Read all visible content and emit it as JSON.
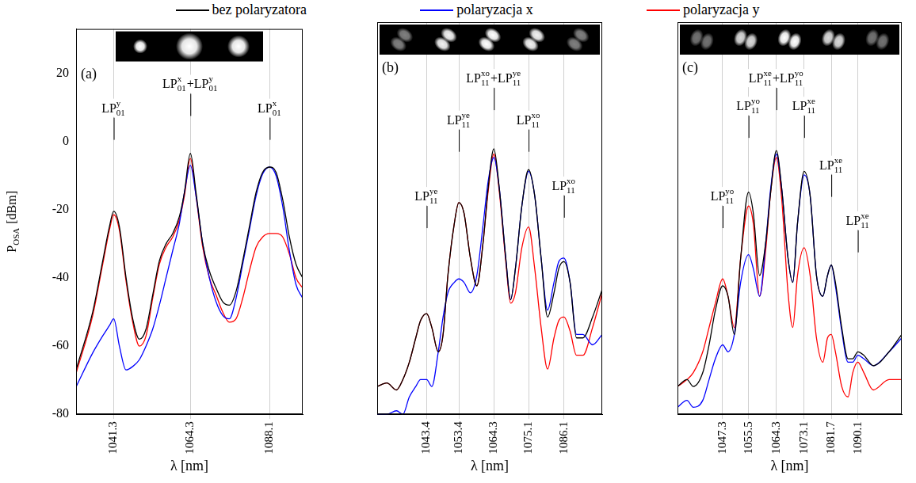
{
  "chart_data": [
    {
      "type": "line",
      "panel": "(a)",
      "legend": "top",
      "grid": "x",
      "x_label": "λ [nm]",
      "y_label": [
        {
          "base": "P",
          "sub": "OSA"
        },
        " [dBm]"
      ],
      "xlim": [
        1030,
        1098
      ],
      "xticks": [
        1041.3,
        1064.3,
        1088.1
      ],
      "ylim": [
        -80,
        33
      ],
      "yticks": [
        -80,
        -60,
        -40,
        -20,
        0,
        20
      ],
      "x": [
        1030,
        1035,
        1038,
        1040,
        1041.3,
        1043,
        1045,
        1047,
        1049,
        1051,
        1053,
        1055,
        1057,
        1059,
        1061,
        1062.5,
        1064.3,
        1066,
        1068,
        1070,
        1072,
        1074,
        1076,
        1078,
        1080,
        1082,
        1084,
        1086,
        1088.1,
        1090,
        1092,
        1094,
        1096,
        1098
      ],
      "series": [
        {
          "name": "bez polaryzatora",
          "color": "#000000",
          "values": [
            -67,
            -50,
            -35,
            -25,
            -20.5,
            -25,
            -40,
            -52,
            -58,
            -55,
            -45,
            -35,
            -30,
            -27,
            -22,
            -15,
            -3.5,
            -15,
            -30,
            -38,
            -43,
            -47,
            -48,
            -44,
            -35,
            -25,
            -15,
            -9,
            -7.5,
            -9,
            -17,
            -28,
            -36,
            -40
          ]
        },
        {
          "name": "polaryzacja x",
          "color": "#0000ff",
          "values": [
            -72,
            -62,
            -57,
            -54,
            -52,
            -60,
            -67,
            -66,
            -64,
            -60,
            -55,
            -48,
            -40,
            -32,
            -24,
            -15,
            -7,
            -16,
            -30,
            -40,
            -47,
            -51,
            -52,
            -46,
            -36,
            -26,
            -16,
            -9.5,
            -7.5,
            -10,
            -19,
            -32,
            -42,
            -46
          ]
        },
        {
          "name": "polaryzacja y",
          "color": "#ff0000",
          "values": [
            -68,
            -51,
            -36,
            -26,
            -21.5,
            -26,
            -41,
            -53,
            -60,
            -57,
            -46,
            -36,
            -31,
            -28,
            -23,
            -16,
            -5,
            -16,
            -31,
            -40,
            -45,
            -50,
            -53,
            -52,
            -46,
            -38,
            -31,
            -28,
            -27,
            -27,
            -28,
            -33,
            -40,
            -43
          ]
        }
      ],
      "annotations": [
        {
          "x": 1041.3,
          "y": 10,
          "text": [
            {
              "base": "LP",
              "sup": "y",
              "sub": "01"
            }
          ]
        },
        {
          "x": 1064.3,
          "y": 17,
          "text": [
            {
              "base": "LP",
              "sup": "x",
              "sub": "01"
            },
            "+",
            {
              "base": "LP",
              "sup": "y",
              "sub": "01"
            }
          ]
        },
        {
          "x": 1088.1,
          "y": 10,
          "text": [
            {
              "base": "LP",
              "sup": "x",
              "sub": "01"
            }
          ]
        }
      ]
    },
    {
      "type": "line",
      "panel": "(b)",
      "grid": "x",
      "tick_labels": "x",
      "x_label": "λ [nm]",
      "xlim": [
        1028,
        1098
      ],
      "xticks": [
        1043.4,
        1053.4,
        1064.3,
        1075.1,
        1086.1
      ],
      "ylim": [
        -80,
        33
      ],
      "yticks": [
        -80,
        -60,
        -40,
        -20,
        0,
        20
      ],
      "x": [
        1028,
        1031,
        1034,
        1036,
        1038,
        1040,
        1041.5,
        1043.4,
        1045,
        1047,
        1048.5,
        1050,
        1052,
        1053.4,
        1055,
        1057,
        1059,
        1061,
        1062.5,
        1064.3,
        1066,
        1068,
        1069.5,
        1071,
        1073,
        1075.1,
        1077,
        1079,
        1081,
        1083,
        1084.5,
        1086.1,
        1088,
        1090,
        1092,
        1095,
        1098
      ],
      "series": [
        {
          "name": "bez polaryzatora",
          "color": "#000000",
          "values": [
            -72,
            -71,
            -73,
            -70,
            -65,
            -58,
            -53,
            -51,
            -55,
            -62,
            -57,
            -40,
            -25,
            -19,
            -22,
            -35,
            -43,
            -30,
            -15,
            -3.5,
            -15,
            -35,
            -47,
            -38,
            -20,
            -9.5,
            -17,
            -35,
            -52,
            -45,
            -38,
            -36,
            -42,
            -58,
            -58,
            -52,
            -44
          ]
        },
        {
          "name": "polaryzacja x",
          "color": "#0000ff",
          "values": [
            -80,
            -80,
            -79,
            -80,
            -75,
            -72,
            -70,
            -70,
            -72,
            -62,
            -52,
            -45,
            -42,
            -41,
            -42,
            -45,
            -40,
            -25,
            -13,
            -6,
            -15,
            -35,
            -47,
            -38,
            -20,
            -10,
            -17,
            -35,
            -50,
            -42,
            -36,
            -35,
            -42,
            -57,
            -57,
            -60,
            -57
          ]
        },
        {
          "name": "polaryzacja y",
          "color": "#ff0000",
          "values": [
            -72,
            -71,
            -73,
            -70,
            -65,
            -58,
            -53,
            -51,
            -55,
            -62,
            -57,
            -40,
            -25,
            -19,
            -22,
            -35,
            -43,
            -30,
            -16,
            -5,
            -16,
            -36,
            -48,
            -45,
            -32,
            -26,
            -38,
            -55,
            -67,
            -58,
            -53,
            -52,
            -56,
            -63,
            -63,
            -55,
            -45
          ]
        }
      ],
      "annotations": [
        {
          "x": 1043.4,
          "y": -17,
          "text": [
            {
              "base": "LP",
              "sup": "ye",
              "sub": "11"
            }
          ]
        },
        {
          "x": 1053.4,
          "y": 5,
          "text": [
            {
              "base": "LP",
              "sup": "ye",
              "sub": "11"
            }
          ]
        },
        {
          "x": 1064.3,
          "y": 17,
          "text": [
            {
              "base": "LP",
              "sup": "xo",
              "sub": "11"
            },
            "+",
            {
              "base": "LP",
              "sup": "ye",
              "sub": "11"
            }
          ]
        },
        {
          "x": 1075.1,
          "y": 5,
          "text": [
            {
              "base": "LP",
              "sup": "xo",
              "sub": "11"
            }
          ]
        },
        {
          "x": 1086.1,
          "y": -14,
          "text": [
            {
              "base": "LP",
              "sup": "xo",
              "sub": "11"
            }
          ]
        }
      ]
    },
    {
      "type": "line",
      "panel": "(c)",
      "grid": "x",
      "tick_labels": "x",
      "x_label": "λ [nm]",
      "xlim": [
        1033,
        1104
      ],
      "xticks": [
        1047.3,
        1055.5,
        1064.3,
        1073.1,
        1081.7,
        1090.1
      ],
      "ylim": [
        -80,
        33
      ],
      "yticks": [
        -80,
        -60,
        -40,
        -20,
        0,
        20
      ],
      "x": [
        1033,
        1036,
        1038,
        1041,
        1043,
        1045,
        1047.3,
        1049,
        1051,
        1053,
        1055.5,
        1057,
        1059,
        1061,
        1062.5,
        1064.3,
        1066,
        1068,
        1069.5,
        1071,
        1073.1,
        1075,
        1077,
        1079,
        1080.5,
        1081.7,
        1083,
        1085,
        1087,
        1088.5,
        1090.1,
        1092,
        1095,
        1100,
        1104
      ],
      "series": [
        {
          "name": "bez polaryzatora",
          "color": "#000000",
          "values": [
            -72,
            -70,
            -72,
            -68,
            -60,
            -50,
            -43,
            -46,
            -57,
            -35,
            -16,
            -22,
            -40,
            -30,
            -16,
            -4,
            -15,
            -35,
            -42,
            -25,
            -10,
            -17,
            -40,
            -46,
            -40,
            -37,
            -42,
            -55,
            -64,
            -64,
            -62,
            -63,
            -66,
            -62,
            -57
          ]
        },
        {
          "name": "polaryzacja x",
          "color": "#0000ff",
          "values": [
            -78,
            -76,
            -78,
            -76,
            -70,
            -64,
            -60,
            -62,
            -57,
            -42,
            -34,
            -38,
            -46,
            -30,
            -15,
            -5,
            -15,
            -35,
            -42,
            -25,
            -11,
            -17,
            -40,
            -46,
            -40,
            -37,
            -43,
            -56,
            -65,
            -65,
            -63,
            -64,
            -66,
            -62,
            -58
          ]
        },
        {
          "name": "polaryzacja y",
          "color": "#ff0000",
          "values": [
            -72,
            -70,
            -68,
            -62,
            -55,
            -48,
            -41,
            -46,
            -55,
            -35,
            -20,
            -25,
            -46,
            -32,
            -16,
            -6,
            -18,
            -45,
            -55,
            -40,
            -32,
            -40,
            -58,
            -65,
            -58,
            -57,
            -62,
            -72,
            -75,
            -68,
            -65,
            -68,
            -73,
            -70,
            -70
          ]
        }
      ],
      "annotations": [
        {
          "x": 1047.3,
          "y": -17,
          "text": [
            {
              "base": "LP",
              "sup": "yo",
              "sub": "11"
            }
          ]
        },
        {
          "x": 1055.5,
          "y": 9,
          "text": [
            {
              "base": "LP",
              "sup": "yo",
              "sub": "11"
            }
          ]
        },
        {
          "x": 1064.3,
          "y": 17,
          "text": [
            {
              "base": "LP",
              "sup": "xe",
              "sub": "11"
            },
            "+",
            {
              "base": "LP",
              "sup": "yo",
              "sub": "11"
            }
          ]
        },
        {
          "x": 1073.1,
          "y": 9,
          "text": [
            {
              "base": "LP",
              "sup": "xe",
              "sub": "11"
            }
          ]
        },
        {
          "x": 1081.7,
          "y": -8,
          "text": [
            {
              "base": "LP",
              "sup": "xe",
              "sub": "11"
            }
          ]
        },
        {
          "x": 1090.1,
          "y": -24,
          "text": [
            {
              "base": "LP",
              "sup": "xe",
              "sub": "11"
            }
          ]
        }
      ]
    }
  ]
}
